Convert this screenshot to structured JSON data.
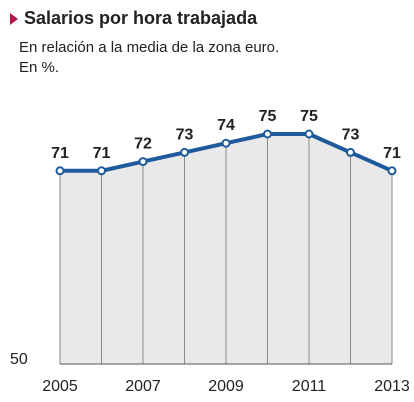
{
  "header": {
    "title": "Salarios por hora trabajada",
    "subtitle_line1": "En relación a la media de la zona euro.",
    "subtitle_line2": "En %."
  },
  "colors": {
    "line": "#1f5b9c",
    "area": "#e9e9e9",
    "marker": "#b5134b",
    "drop_line": "#8a8a8a"
  },
  "chart_data": {
    "type": "area",
    "title": "Salarios por hora trabajada",
    "subtitle": "En relación a la media de la zona euro. En %.",
    "x": [
      2005,
      2006,
      2007,
      2008,
      2009,
      2010,
      2011,
      2012,
      2013
    ],
    "series": [
      {
        "values": [
          71,
          71,
          72,
          73,
          74,
          75,
          75,
          73,
          71
        ]
      }
    ],
    "data_labels": [
      "71",
      "71",
      "72",
      "73",
      "74",
      "75",
      "75",
      "73",
      "71"
    ],
    "x_tick_labels": [
      "2005",
      "2007",
      "2009",
      "2011",
      "2013"
    ],
    "y_tick_labels": [
      "50"
    ],
    "ylim": [
      50,
      75
    ],
    "grid": false
  }
}
